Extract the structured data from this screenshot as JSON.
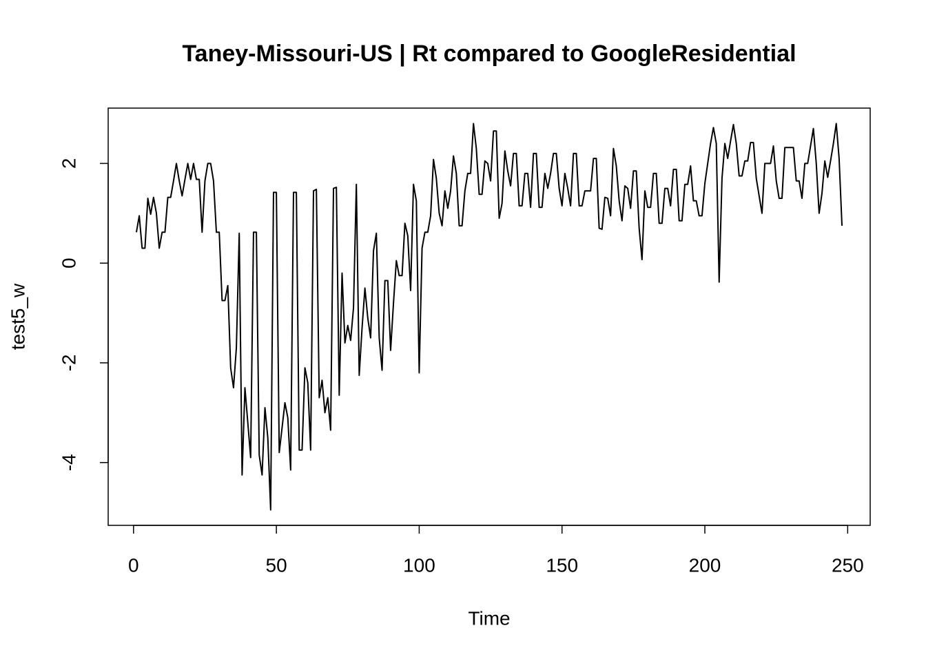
{
  "chart_data": {
    "type": "line",
    "title": "Taney-Missouri-US | Rt compared to GoogleResidential",
    "x_label": "Time",
    "y_label": "test5_w",
    "color": "#000000",
    "x": [
      1,
      2,
      3,
      4,
      5,
      6,
      7,
      8,
      9,
      10,
      11,
      12,
      13,
      14,
      15,
      16,
      17,
      18,
      19,
      20,
      21,
      22,
      23,
      24,
      25,
      26,
      27,
      28,
      29,
      30,
      31,
      32,
      33,
      34,
      35,
      36,
      37,
      38,
      39,
      40,
      41,
      42,
      43,
      44,
      45,
      46,
      47,
      48,
      49,
      50,
      51,
      52,
      53,
      54,
      55,
      56,
      57,
      58,
      59,
      60,
      61,
      62,
      63,
      64,
      65,
      66,
      67,
      68,
      69,
      70,
      71,
      72,
      73,
      74,
      75,
      76,
      77,
      78,
      79,
      80,
      81,
      82,
      83,
      84,
      85,
      86,
      87,
      88,
      89,
      90,
      91,
      92,
      93,
      94,
      95,
      96,
      97,
      98,
      99,
      100,
      101,
      102,
      103,
      104,
      105,
      106,
      107,
      108,
      109,
      110,
      111,
      112,
      113,
      114,
      115,
      116,
      117,
      118,
      119,
      120,
      121,
      122,
      123,
      124,
      125,
      126,
      127,
      128,
      129,
      130,
      131,
      132,
      133,
      134,
      135,
      136,
      137,
      138,
      139,
      140,
      141,
      142,
      143,
      144,
      145,
      146,
      147,
      148,
      149,
      150,
      151,
      152,
      153,
      154,
      155,
      156,
      157,
      158,
      159,
      160,
      161,
      162,
      163,
      164,
      165,
      166,
      167,
      168,
      169,
      170,
      171,
      172,
      173,
      174,
      175,
      176,
      177,
      178,
      179,
      180,
      181,
      182,
      183,
      184,
      185,
      186,
      187,
      188,
      189,
      190,
      191,
      192,
      193,
      194,
      195,
      196,
      197,
      198,
      199,
      200,
      201,
      202,
      203,
      204,
      205,
      206,
      207,
      208,
      209,
      210,
      211,
      212,
      213,
      214,
      215,
      216,
      217,
      218,
      219,
      220,
      221,
      222,
      223,
      224,
      225,
      226,
      227,
      228,
      229,
      230,
      231,
      232,
      233,
      234,
      235,
      236,
      237,
      238,
      239,
      240,
      241,
      242,
      243,
      244,
      245,
      246,
      247,
      248
    ],
    "values": [
      0.62,
      0.95,
      0.3,
      0.3,
      1.3,
      0.98,
      1.32,
      1.0,
      0.3,
      0.62,
      0.62,
      1.32,
      1.32,
      1.65,
      2.0,
      1.65,
      1.35,
      1.68,
      2.0,
      1.68,
      2.0,
      1.68,
      1.68,
      0.62,
      1.65,
      2.0,
      2.0,
      1.65,
      0.62,
      0.62,
      -0.75,
      -0.75,
      -0.45,
      -2.1,
      -2.5,
      -1.7,
      0.6,
      -4.25,
      -2.5,
      -3.2,
      -3.9,
      0.62,
      0.62,
      -3.85,
      -4.25,
      -2.9,
      -3.5,
      -4.95,
      1.42,
      1.42,
      -3.8,
      -3.3,
      -2.8,
      -3.1,
      -4.15,
      1.42,
      1.42,
      -3.75,
      -3.75,
      -2.1,
      -2.4,
      -3.75,
      1.45,
      1.48,
      -2.7,
      -2.35,
      -3.0,
      -2.7,
      -3.35,
      1.5,
      1.52,
      -2.65,
      -0.2,
      -1.6,
      -1.25,
      -1.55,
      -0.9,
      1.58,
      -2.25,
      -1.3,
      -0.5,
      -1.1,
      -1.5,
      0.25,
      0.6,
      -1.5,
      -2.15,
      -0.35,
      -0.35,
      -1.75,
      -0.8,
      0.05,
      -0.25,
      -0.25,
      0.8,
      0.55,
      -0.55,
      1.58,
      1.25,
      -2.2,
      0.3,
      0.62,
      0.62,
      0.95,
      2.08,
      1.7,
      1.0,
      0.75,
      1.45,
      1.1,
      1.45,
      2.15,
      1.8,
      0.75,
      0.75,
      1.45,
      1.8,
      1.8,
      2.8,
      2.3,
      1.38,
      1.38,
      2.05,
      2.0,
      1.65,
      2.65,
      2.65,
      0.9,
      1.2,
      2.25,
      1.85,
      1.55,
      2.2,
      2.2,
      1.15,
      1.15,
      1.8,
      1.8,
      1.12,
      2.2,
      2.2,
      1.12,
      1.12,
      1.8,
      1.5,
      1.8,
      2.2,
      2.2,
      1.5,
      1.15,
      1.8,
      1.5,
      1.15,
      2.2,
      2.2,
      1.15,
      1.15,
      1.45,
      1.45,
      1.45,
      2.1,
      2.1,
      0.7,
      0.68,
      1.32,
      1.3,
      0.95,
      2.3,
      1.95,
      1.25,
      0.85,
      1.55,
      1.5,
      1.1,
      1.85,
      1.85,
      0.7,
      0.07,
      1.45,
      1.12,
      1.12,
      1.8,
      1.8,
      0.8,
      0.8,
      1.5,
      1.5,
      1.15,
      1.88,
      1.88,
      0.85,
      0.85,
      1.58,
      1.58,
      1.95,
      1.25,
      1.25,
      0.95,
      0.95,
      1.6,
      2.0,
      2.4,
      2.72,
      2.4,
      -0.38,
      1.7,
      2.4,
      2.1,
      2.45,
      2.78,
      2.4,
      1.75,
      1.75,
      2.05,
      2.05,
      2.42,
      2.42,
      1.7,
      1.35,
      1.0,
      2.0,
      2.0,
      2.0,
      2.35,
      1.65,
      1.3,
      1.3,
      2.32,
      2.32,
      2.32,
      2.32,
      1.65,
      1.65,
      1.3,
      2.0,
      2.0,
      2.35,
      2.7,
      2.0,
      1.0,
      1.4,
      2.05,
      1.72,
      2.05,
      2.4,
      2.8,
      2.1,
      0.75
    ],
    "xlim": [
      -8.88,
      257.88
    ],
    "ylim": [
      -5.26,
      3.11
    ],
    "xticks": [
      0,
      50,
      100,
      150,
      200,
      250
    ],
    "yticks": [
      -4,
      -2,
      0,
      2
    ]
  }
}
